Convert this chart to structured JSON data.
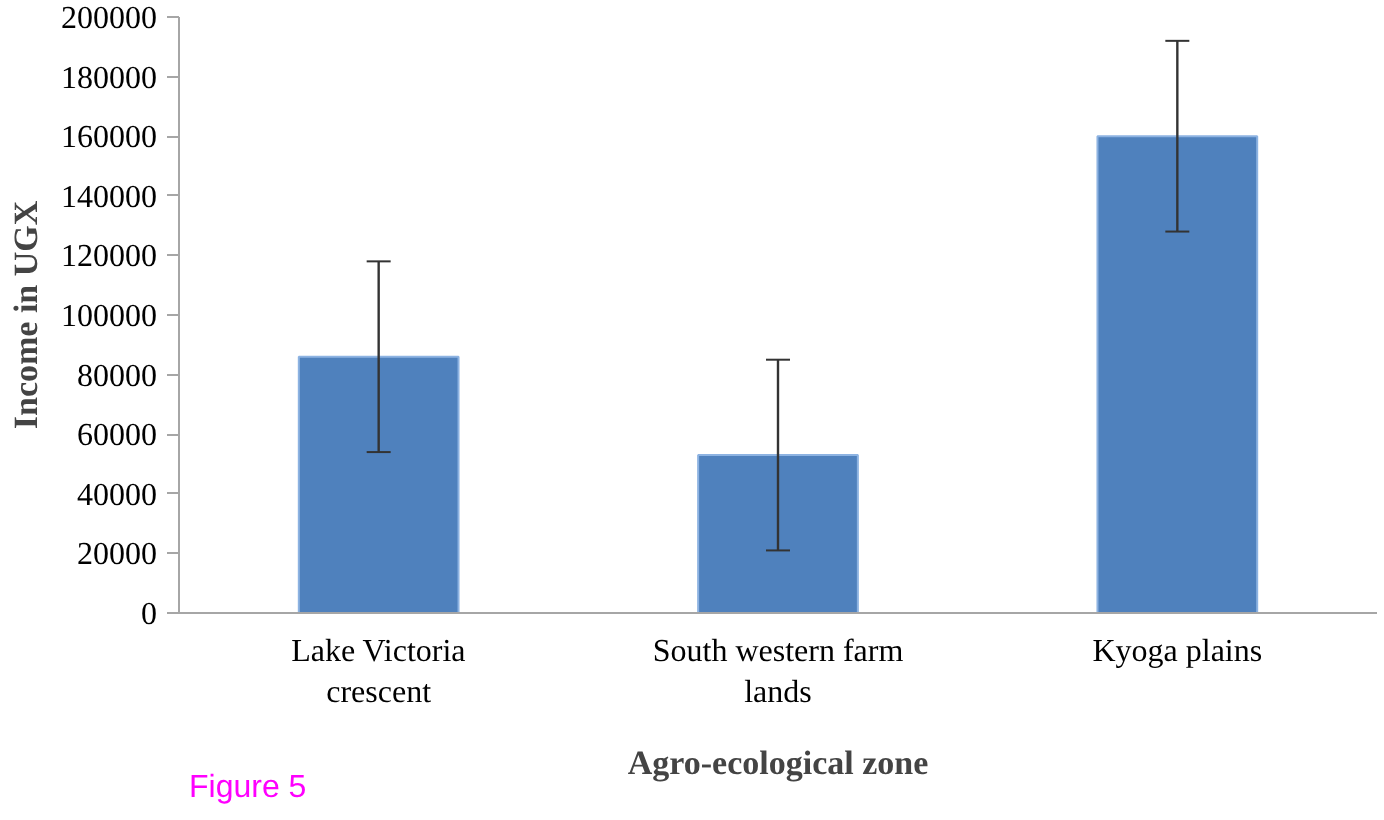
{
  "chart_data": {
    "type": "bar",
    "xlabel": "Agro-ecological zone",
    "ylabel": "Income in UGX",
    "categories": [
      "Lake Victoria crescent",
      "South western farm lands",
      "Kyoga plains"
    ],
    "values": [
      86000,
      53000,
      160000
    ],
    "errors": [
      32000,
      32000,
      32000
    ],
    "color": "#4f81bd",
    "ylim": [
      0,
      200000
    ],
    "yticks": [
      0,
      20000,
      40000,
      60000,
      80000,
      100000,
      120000,
      140000,
      160000,
      180000,
      200000
    ],
    "grid": false,
    "annotations": [
      "Figure 5"
    ]
  }
}
